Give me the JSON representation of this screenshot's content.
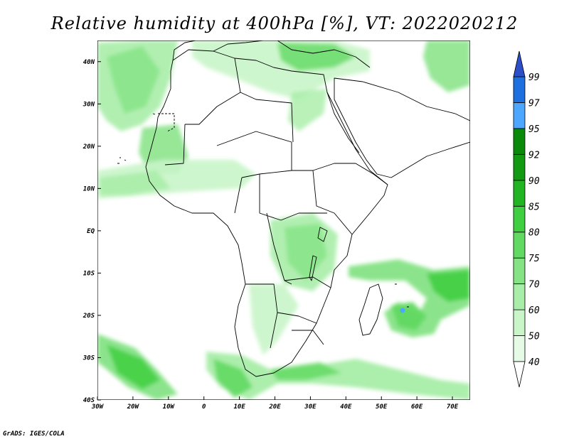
{
  "title": "Relative humidity at 400hPa [%], VT: 2022020212",
  "footer": "GrADS: IGES/COLA",
  "map": {
    "lon_range": [
      -30,
      75
    ],
    "lat_range": [
      -40,
      45
    ],
    "x_ticks": [
      "30W",
      "20W",
      "10W",
      "0",
      "10E",
      "20E",
      "30E",
      "40E",
      "50E",
      "60E",
      "70E"
    ],
    "x_tick_values": [
      -30,
      -20,
      -10,
      0,
      10,
      20,
      30,
      40,
      50,
      60,
      70
    ],
    "y_ticks": [
      "40S",
      "30S",
      "20S",
      "10S",
      "EQ",
      "10N",
      "20N",
      "30N",
      "40N"
    ],
    "y_tick_values": [
      -40,
      -30,
      -20,
      -10,
      0,
      10,
      20,
      30,
      40
    ]
  },
  "colorbar": {
    "levels": [
      "40",
      "50",
      "60",
      "70",
      "75",
      "80",
      "85",
      "90",
      "92",
      "95",
      "97",
      "99"
    ],
    "colors": [
      "#ffffff",
      "#e6fbe6",
      "#c9f5c9",
      "#a8eda8",
      "#85e385",
      "#62d962",
      "#40cf40",
      "#22b422",
      "#139a13",
      "#0a8a0a",
      "#4da6ff",
      "#1e6fe0",
      "#2c4fc8"
    ]
  }
}
